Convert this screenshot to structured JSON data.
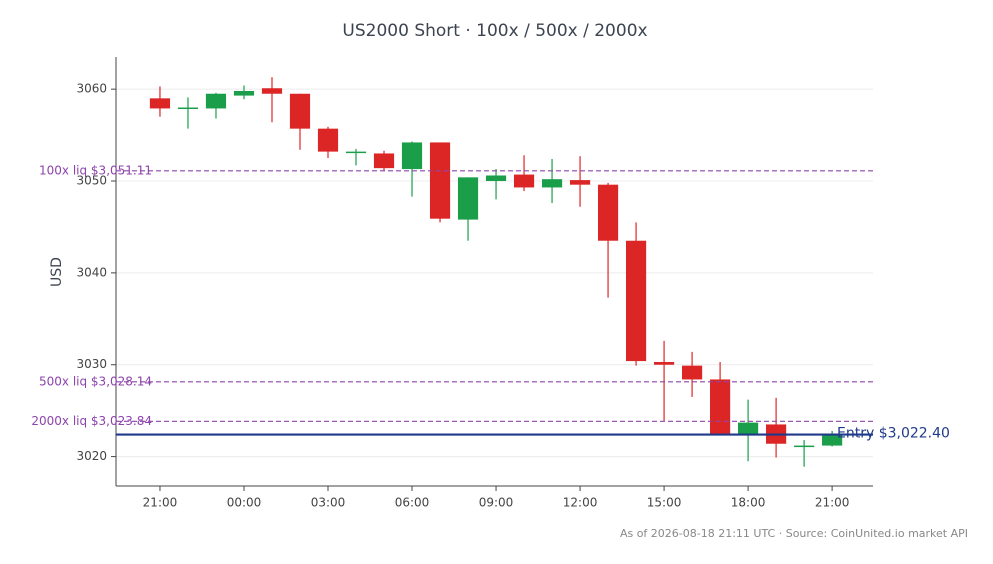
{
  "chart_data": {
    "type": "candlestick",
    "title": "US2000 Short · 100x / 500x / 2000x",
    "y_label": "USD",
    "footer": "As of 2026-08-18 21:11 UTC · Source: CoinUnited.io market API",
    "x": [
      0,
      1,
      2,
      3,
      4,
      5,
      6,
      7,
      8,
      9,
      10,
      11,
      12,
      13,
      14,
      15,
      16,
      17,
      18,
      19,
      20,
      21,
      22,
      23,
      24
    ],
    "open": [
      3059.0,
      3057.9,
      3057.9,
      3059.3,
      3060.1,
      3059.5,
      3055.7,
      3053.1,
      3053.0,
      3051.3,
      3054.2,
      3045.8,
      3050.0,
      3050.7,
      3049.3,
      3050.1,
      3049.6,
      3043.5,
      3030.3,
      3029.9,
      3028.4,
      3022.4,
      3023.5,
      3021.1,
      3021.2
    ],
    "high": [
      3060.3,
      3059.1,
      3059.6,
      3060.4,
      3061.3,
      3059.5,
      3055.9,
      3053.5,
      3053.3,
      3054.3,
      3054.2,
      3050.4,
      3051.3,
      3052.8,
      3052.4,
      3052.7,
      3049.8,
      3045.5,
      3032.6,
      3031.4,
      3030.3,
      3026.2,
      3026.4,
      3021.8,
      3022.8
    ],
    "low": [
      3057.0,
      3055.7,
      3056.8,
      3058.9,
      3056.4,
      3053.4,
      3052.5,
      3051.7,
      3051.1,
      3048.3,
      3045.5,
      3043.5,
      3048.0,
      3048.9,
      3047.6,
      3047.2,
      3037.3,
      3029.9,
      3023.9,
      3026.5,
      3022.4,
      3019.5,
      3019.9,
      3018.9,
      3021.1
    ],
    "close": [
      3057.9,
      3058.0,
      3059.5,
      3059.8,
      3059.5,
      3055.7,
      3053.2,
      3053.2,
      3051.4,
      3054.2,
      3045.9,
      3050.4,
      3050.6,
      3049.3,
      3050.2,
      3049.6,
      3043.5,
      3030.4,
      3030.0,
      3028.4,
      3022.4,
      3023.7,
      3021.4,
      3021.2,
      3022.4
    ],
    "up_color": "#1a9e4a",
    "down_color": "#dc2626",
    "xlim": [
      -1.57,
      25.46
    ],
    "xticks": [
      {
        "value": 0,
        "label": "21:00"
      },
      {
        "value": 3,
        "label": "00:00"
      },
      {
        "value": 6,
        "label": "03:00"
      },
      {
        "value": 9,
        "label": "06:00"
      },
      {
        "value": 12,
        "label": "09:00"
      },
      {
        "value": 15,
        "label": "12:00"
      },
      {
        "value": 18,
        "label": "15:00"
      },
      {
        "value": 21,
        "label": "18:00"
      },
      {
        "value": 24,
        "label": "21:00"
      }
    ],
    "ylim": [
      3016.8,
      3063.5
    ],
    "yticks": [
      3020,
      3030,
      3040,
      3050,
      3060
    ],
    "grid": true,
    "reference_lines": [
      {
        "label": "100x liq $3,051.11",
        "value": 3051.11,
        "color": "#8e44ad",
        "style": "dashed"
      },
      {
        "label": "500x liq $3,028.14",
        "value": 3028.14,
        "color": "#8e44ad",
        "style": "dashed"
      },
      {
        "label": "2000x liq $3,023.84",
        "value": 3023.84,
        "color": "#8e44ad",
        "style": "dashed"
      },
      {
        "label": "Entry $3,022.40",
        "value": 3022.4,
        "color": "#1f3a8a",
        "style": "solid"
      }
    ]
  }
}
